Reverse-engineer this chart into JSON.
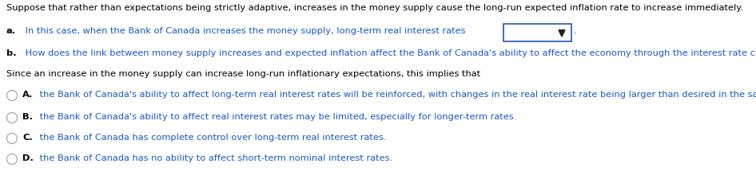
{
  "bg_color": "#ffffff",
  "figsize": [
    9.46,
    2.26
  ],
  "dpi": 100,
  "font_size": 8.2,
  "text_black": "#000000",
  "text_blue": "#1a56cc",
  "line0": "Suppose that rather than expectations being strictly adaptive, increases in the money supply cause the long-run expected inflation rate to increase immediately.",
  "line_a_prefix": "a.",
  "line_a_text": " In this case, when the Bank of Canada increases the money supply, long-term real interest rates",
  "line_b_prefix": "b.",
  "line_b_text": " How does the link between money supply increases and expected inflation affect the Bank of Canada's ability to affect the economy through the interest rate channel?",
  "line_since": "Since an increase in the money supply can increase long-run inflationary expectations, this implies that",
  "options": [
    {
      "label": "A.",
      "text": " the Bank of Canada's ability to affect long-term real interest rates will be reinforced, with changes in the real interest rate being larger than desired in the same direction."
    },
    {
      "label": "B.",
      "text": " the Bank of Canada's ability to affect real interest rates may be limited, especially for longer-term rates."
    },
    {
      "label": "C.",
      "text": " the Bank of Canada has complete control over long-term real interest rates."
    },
    {
      "label": "D.",
      "text": " the Bank of Canada has no ability to affect short-term nominal interest rates."
    }
  ]
}
